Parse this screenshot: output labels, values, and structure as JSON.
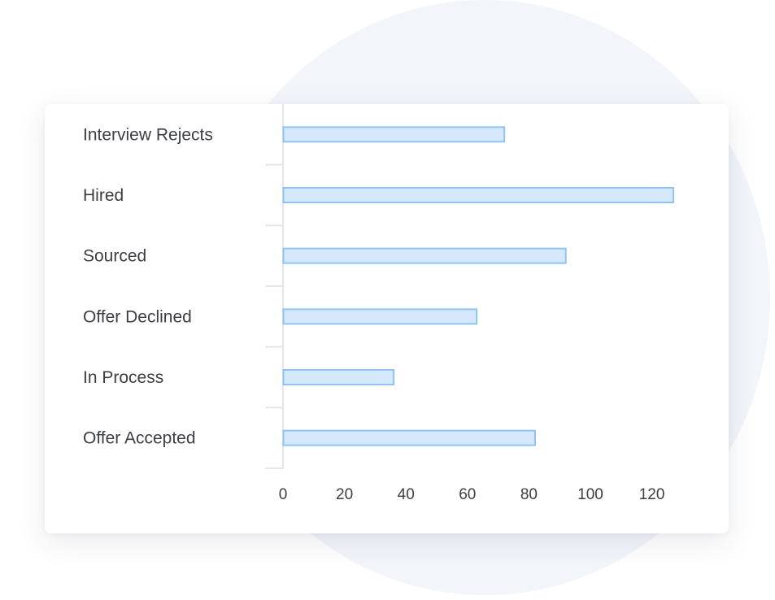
{
  "chart_data": {
    "type": "bar",
    "orientation": "horizontal",
    "categories": [
      "Interview Rejects",
      "Hired",
      "Sourced",
      "Offer Declined",
      "In Process",
      "Offer Accepted"
    ],
    "values": [
      72,
      127,
      92,
      63,
      36,
      82
    ],
    "xlim": [
      0,
      130
    ],
    "xticks": [
      0,
      20,
      40,
      60,
      80,
      100,
      120
    ],
    "grid": false,
    "colors": {
      "bar_fill": "#d5e8fc",
      "bar_stroke": "#8fc3f4",
      "axis": "#e3e5e8",
      "text": "#3b3f45"
    }
  }
}
